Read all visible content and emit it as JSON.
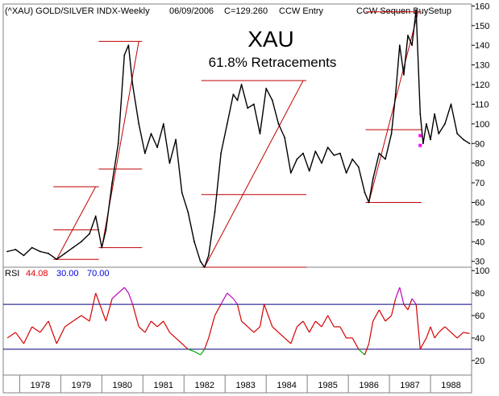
{
  "header": {
    "symbol_line": "(^XAU) GOLD/SILVER INDX-Weekly",
    "date": "06/09/2006",
    "close": "C=129.260",
    "study": "CCW Entry",
    "setup": "CCW Sequen BuySetup"
  },
  "title": "XAU",
  "subtitle": "61.8% Retracements",
  "rsi_label": {
    "name": "RSI",
    "value": "44.08",
    "lower": "30.00",
    "upper": "70.00"
  },
  "colors": {
    "price": "#000000",
    "rsi": "#d40000",
    "overbought": "#c000c0",
    "oversold": "#00b000",
    "guide": "#c00000",
    "band": "#000080",
    "rsi_value": "#e00000",
    "band_label": "#0000e0",
    "marker": "#ff00ff"
  },
  "chart_data": [
    {
      "type": "line",
      "panel": "price",
      "x_tick_labels": [
        "1978",
        "1979",
        "1980",
        "1981",
        "1982",
        "1983",
        "1984",
        "1985",
        "1986",
        "1987",
        "1988"
      ],
      "y_ticks": [
        30,
        40,
        50,
        60,
        70,
        80,
        90,
        100,
        110,
        120,
        130,
        140,
        150,
        160
      ],
      "ylim": [
        27,
        161
      ],
      "xlim": [
        1977.6,
        1989.0
      ],
      "series": [
        {
          "values": [
            [
              1977.7,
              35
            ],
            [
              1977.9,
              36
            ],
            [
              1978.1,
              33
            ],
            [
              1978.3,
              37
            ],
            [
              1978.5,
              35
            ],
            [
              1978.7,
              34
            ],
            [
              1978.9,
              31
            ],
            [
              1979.1,
              34
            ],
            [
              1979.3,
              37
            ],
            [
              1979.5,
              40
            ],
            [
              1979.7,
              44
            ],
            [
              1979.85,
              53
            ],
            [
              1980.0,
              37
            ],
            [
              1980.1,
              46
            ],
            [
              1980.25,
              70
            ],
            [
              1980.4,
              90
            ],
            [
              1980.55,
              135
            ],
            [
              1980.65,
              140
            ],
            [
              1980.75,
              120
            ],
            [
              1980.9,
              100
            ],
            [
              1981.05,
              85
            ],
            [
              1981.2,
              95
            ],
            [
              1981.35,
              88
            ],
            [
              1981.5,
              100
            ],
            [
              1981.65,
              80
            ],
            [
              1981.8,
              92
            ],
            [
              1981.95,
              65
            ],
            [
              1982.1,
              55
            ],
            [
              1982.25,
              40
            ],
            [
              1982.4,
              30
            ],
            [
              1982.5,
              27
            ],
            [
              1982.6,
              33
            ],
            [
              1982.75,
              55
            ],
            [
              1982.9,
              85
            ],
            [
              1983.05,
              100
            ],
            [
              1983.2,
              115
            ],
            [
              1983.3,
              112
            ],
            [
              1983.4,
              120
            ],
            [
              1983.55,
              108
            ],
            [
              1983.7,
              110
            ],
            [
              1983.85,
              95
            ],
            [
              1984.0,
              118
            ],
            [
              1984.15,
              112
            ],
            [
              1984.3,
              100
            ],
            [
              1984.45,
              93
            ],
            [
              1984.6,
              75
            ],
            [
              1984.75,
              82
            ],
            [
              1984.9,
              85
            ],
            [
              1985.05,
              76
            ],
            [
              1985.2,
              86
            ],
            [
              1985.35,
              80
            ],
            [
              1985.5,
              88
            ],
            [
              1985.65,
              84
            ],
            [
              1985.8,
              85
            ],
            [
              1985.95,
              75
            ],
            [
              1986.1,
              82
            ],
            [
              1986.25,
              78
            ],
            [
              1986.4,
              65
            ],
            [
              1986.5,
              60
            ],
            [
              1986.6,
              72
            ],
            [
              1986.75,
              85
            ],
            [
              1986.9,
              82
            ],
            [
              1987.05,
              95
            ],
            [
              1987.15,
              115
            ],
            [
              1987.25,
              140
            ],
            [
              1987.35,
              125
            ],
            [
              1987.45,
              145
            ],
            [
              1987.55,
              140
            ],
            [
              1987.65,
              158
            ],
            [
              1987.75,
              105
            ],
            [
              1987.82,
              90
            ],
            [
              1987.9,
              100
            ],
            [
              1988.0,
              92
            ],
            [
              1988.1,
              105
            ],
            [
              1988.2,
              95
            ],
            [
              1988.35,
              100
            ],
            [
              1988.5,
              110
            ],
            [
              1988.65,
              95
            ],
            [
              1988.8,
              92
            ],
            [
              1988.95,
              90
            ]
          ]
        }
      ],
      "retracements": [
        {
          "from": [
            1978.9,
            31
          ],
          "to": [
            1979.85,
            68
          ],
          "levels": [
            68,
            46,
            31
          ]
        },
        {
          "from": [
            1980.0,
            37
          ],
          "to": [
            1980.9,
            142
          ],
          "levels": [
            142,
            77,
            37
          ]
        },
        {
          "from": [
            1982.5,
            27
          ],
          "to": [
            1984.9,
            122
          ],
          "levels": [
            122,
            64,
            27
          ]
        },
        {
          "from": [
            1986.5,
            60
          ],
          "to": [
            1987.7,
            157
          ],
          "levels": [
            157,
            97,
            60
          ]
        }
      ],
      "markers": [
        [
          1987.75,
          94
        ],
        [
          1987.75,
          89
        ]
      ]
    },
    {
      "type": "line",
      "panel": "rsi",
      "y_ticks": [
        20,
        40,
        60,
        80,
        100
      ],
      "ylim": [
        7,
        103
      ],
      "bands": [
        30,
        70
      ],
      "series": [
        {
          "values": [
            [
              1977.7,
              40
            ],
            [
              1977.9,
              45
            ],
            [
              1978.1,
              35
            ],
            [
              1978.3,
              50
            ],
            [
              1978.5,
              45
            ],
            [
              1978.7,
              55
            ],
            [
              1978.9,
              35
            ],
            [
              1979.1,
              50
            ],
            [
              1979.3,
              55
            ],
            [
              1979.5,
              60
            ],
            [
              1979.7,
              55
            ],
            [
              1979.85,
              80
            ],
            [
              1980.0,
              65
            ],
            [
              1980.1,
              55
            ],
            [
              1980.25,
              75
            ],
            [
              1980.4,
              80
            ],
            [
              1980.55,
              85
            ],
            [
              1980.65,
              80
            ],
            [
              1980.75,
              70
            ],
            [
              1980.9,
              50
            ],
            [
              1981.05,
              45
            ],
            [
              1981.2,
              55
            ],
            [
              1981.35,
              50
            ],
            [
              1981.5,
              55
            ],
            [
              1981.65,
              45
            ],
            [
              1981.8,
              40
            ],
            [
              1981.95,
              35
            ],
            [
              1982.1,
              30
            ],
            [
              1982.25,
              28
            ],
            [
              1982.4,
              25
            ],
            [
              1982.5,
              30
            ],
            [
              1982.6,
              40
            ],
            [
              1982.75,
              60
            ],
            [
              1982.9,
              70
            ],
            [
              1983.05,
              80
            ],
            [
              1983.2,
              75
            ],
            [
              1983.3,
              70
            ],
            [
              1983.4,
              55
            ],
            [
              1983.55,
              50
            ],
            [
              1983.7,
              45
            ],
            [
              1983.85,
              50
            ],
            [
              1983.95,
              70
            ],
            [
              1984.15,
              50
            ],
            [
              1984.3,
              45
            ],
            [
              1984.45,
              40
            ],
            [
              1984.6,
              35
            ],
            [
              1984.75,
              50
            ],
            [
              1984.9,
              55
            ],
            [
              1985.05,
              45
            ],
            [
              1985.2,
              55
            ],
            [
              1985.35,
              50
            ],
            [
              1985.5,
              60
            ],
            [
              1985.65,
              50
            ],
            [
              1985.8,
              50
            ],
            [
              1985.95,
              40
            ],
            [
              1986.1,
              40
            ],
            [
              1986.25,
              30
            ],
            [
              1986.4,
              25
            ],
            [
              1986.5,
              35
            ],
            [
              1986.6,
              55
            ],
            [
              1986.75,
              65
            ],
            [
              1986.9,
              55
            ],
            [
              1987.05,
              60
            ],
            [
              1987.15,
              75
            ],
            [
              1987.25,
              85
            ],
            [
              1987.35,
              70
            ],
            [
              1987.45,
              65
            ],
            [
              1987.55,
              75
            ],
            [
              1987.65,
              70
            ],
            [
              1987.75,
              30
            ],
            [
              1987.82,
              35
            ],
            [
              1987.9,
              40
            ],
            [
              1988.0,
              50
            ],
            [
              1988.1,
              40
            ],
            [
              1988.2,
              45
            ],
            [
              1988.35,
              50
            ],
            [
              1988.5,
              45
            ],
            [
              1988.65,
              40
            ],
            [
              1988.8,
              45
            ],
            [
              1988.95,
              44
            ]
          ]
        }
      ]
    }
  ]
}
